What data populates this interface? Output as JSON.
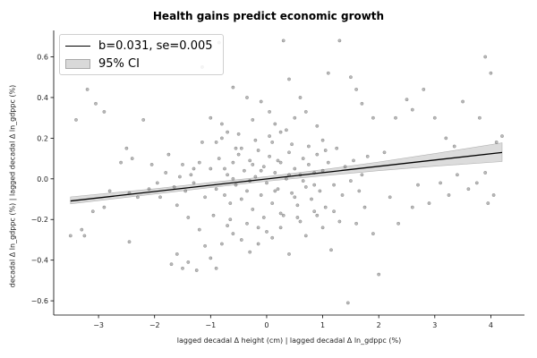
{
  "chart_data": {
    "type": "scatter",
    "title": "Health gains predict economic growth",
    "xlabel": "lagged decadal Δ height (cm) | lagged decadal Δ ln_gdppc (%)",
    "ylabel": "decadal Δ ln_gdppc (%) | lagged decadal Δ ln_gdppc (%)",
    "xlim": [
      -3.8,
      4.6
    ],
    "ylim": [
      -0.67,
      0.73
    ],
    "x_ticks": [
      -3,
      -2,
      -1,
      0,
      1,
      2,
      3,
      4
    ],
    "x_tick_labels": [
      "−3",
      "−2",
      "−1",
      "0",
      "1",
      "2",
      "3",
      "4"
    ],
    "y_ticks": [
      -0.6,
      -0.4,
      -0.2,
      0.0,
      0.2,
      0.4,
      0.6
    ],
    "y_tick_labels": [
      "−0.6",
      "−0.4",
      "−0.2",
      "0.0",
      "0.2",
      "0.4",
      "0.6"
    ],
    "grid": false,
    "legend_position": "top-left",
    "series": [
      {
        "name": "b=0.031, se=0.005",
        "kind": "fit",
        "slope": 0.031,
        "intercept": -0.0005,
        "x_range": [
          -3.5,
          4.2
        ]
      },
      {
        "name": "95% CI",
        "kind": "ci",
        "x": [
          -3.5,
          -2.0,
          -1.0,
          0.0,
          1.0,
          2.0,
          3.0,
          4.2
        ],
        "lower": [
          -0.123,
          -0.075,
          -0.043,
          -0.012,
          0.015,
          0.04,
          0.062,
          0.085
        ],
        "upper": [
          -0.089,
          -0.049,
          -0.018,
          0.011,
          0.045,
          0.083,
          0.124,
          0.177
        ]
      },
      {
        "name": "observations",
        "kind": "scatter",
        "points": [
          [
            -3.4,
            0.29
          ],
          [
            -3.3,
            -0.25
          ],
          [
            -3.2,
            0.44
          ],
          [
            -3.05,
            0.37
          ],
          [
            -2.9,
            0.33
          ],
          [
            -2.6,
            0.08
          ],
          [
            -2.5,
            0.15
          ],
          [
            -2.4,
            0.1
          ],
          [
            -2.2,
            0.29
          ],
          [
            -2.05,
            0.07
          ],
          [
            -2.45,
            -0.31
          ],
          [
            -3.5,
            -0.28
          ],
          [
            -3.25,
            -0.28
          ],
          [
            -3.1,
            -0.16
          ],
          [
            -2.9,
            -0.14
          ],
          [
            -2.8,
            -0.06
          ],
          [
            -2.45,
            -0.07
          ],
          [
            -2.3,
            -0.09
          ],
          [
            -1.75,
            0.12
          ],
          [
            -1.5,
            0.07
          ],
          [
            -1.3,
            0.05
          ],
          [
            -1.15,
            0.18
          ],
          [
            -1.0,
            0.3
          ],
          [
            -0.9,
            0.18
          ],
          [
            -0.8,
            0.27
          ],
          [
            -0.7,
            0.23
          ],
          [
            -0.6,
            0.45
          ],
          [
            -0.55,
            0.15
          ],
          [
            -1.15,
            0.55
          ],
          [
            -0.85,
            0.67
          ],
          [
            -0.35,
            0.4
          ],
          [
            -0.25,
            0.29
          ],
          [
            -0.1,
            0.38
          ],
          [
            0.05,
            0.33
          ],
          [
            0.15,
            0.27
          ],
          [
            0.25,
            0.23
          ],
          [
            0.3,
            0.68
          ],
          [
            0.4,
            0.49
          ],
          [
            0.5,
            0.3
          ],
          [
            0.6,
            0.4
          ],
          [
            0.7,
            0.33
          ],
          [
            0.9,
            0.26
          ],
          [
            1.0,
            0.19
          ],
          [
            1.1,
            0.52
          ],
          [
            1.3,
            0.68
          ],
          [
            1.5,
            0.5
          ],
          [
            1.6,
            0.44
          ],
          [
            1.7,
            0.37
          ],
          [
            1.9,
            0.3
          ],
          [
            2.1,
            0.13
          ],
          [
            2.3,
            0.3
          ],
          [
            2.5,
            0.39
          ],
          [
            2.6,
            0.34
          ],
          [
            2.8,
            0.44
          ],
          [
            3.0,
            0.3
          ],
          [
            3.2,
            0.2
          ],
          [
            3.35,
            0.16
          ],
          [
            3.5,
            0.38
          ],
          [
            3.8,
            0.3
          ],
          [
            3.9,
            0.6
          ],
          [
            4.0,
            0.52
          ],
          [
            4.1,
            0.18
          ],
          [
            4.2,
            0.21
          ],
          [
            -1.9,
            -0.09
          ],
          [
            -1.6,
            -0.13
          ],
          [
            -1.4,
            -0.19
          ],
          [
            -1.2,
            -0.25
          ],
          [
            -1.1,
            -0.33
          ],
          [
            -1.0,
            -0.39
          ],
          [
            -0.9,
            -0.44
          ],
          [
            -0.8,
            -0.32
          ],
          [
            -0.7,
            -0.23
          ],
          [
            -0.6,
            -0.27
          ],
          [
            -1.6,
            -0.37
          ],
          [
            -1.4,
            -0.41
          ],
          [
            -1.25,
            -0.45
          ],
          [
            -1.5,
            -0.44
          ],
          [
            -1.7,
            -0.42
          ],
          [
            -0.45,
            -0.3
          ],
          [
            -0.3,
            -0.36
          ],
          [
            -0.15,
            -0.32
          ],
          [
            0.0,
            -0.26
          ],
          [
            0.1,
            -0.29
          ],
          [
            0.25,
            -0.24
          ],
          [
            0.4,
            -0.37
          ],
          [
            0.55,
            -0.19
          ],
          [
            0.7,
            -0.28
          ],
          [
            0.85,
            -0.16
          ],
          [
            1.0,
            -0.24
          ],
          [
            1.15,
            -0.35
          ],
          [
            1.3,
            -0.21
          ],
          [
            1.45,
            -0.61
          ],
          [
            1.6,
            -0.22
          ],
          [
            1.75,
            -0.14
          ],
          [
            1.9,
            -0.27
          ],
          [
            2.0,
            -0.47
          ],
          [
            2.2,
            -0.09
          ],
          [
            2.35,
            -0.22
          ],
          [
            2.6,
            -0.14
          ],
          [
            2.7,
            -0.03
          ],
          [
            2.9,
            -0.12
          ],
          [
            3.1,
            -0.02
          ],
          [
            3.25,
            -0.08
          ],
          [
            3.4,
            0.02
          ],
          [
            3.6,
            -0.05
          ],
          [
            3.75,
            -0.02
          ],
          [
            3.9,
            0.03
          ],
          [
            3.95,
            -0.12
          ],
          [
            4.05,
            -0.08
          ],
          [
            -1.0,
            0.05
          ],
          [
            -0.9,
            -0.05
          ],
          [
            -0.85,
            0.1
          ],
          [
            -0.75,
            -0.08
          ],
          [
            -0.7,
            0.02
          ],
          [
            -0.65,
            -0.12
          ],
          [
            -0.6,
            0.08
          ],
          [
            -0.55,
            -0.03
          ],
          [
            -0.5,
            0.12
          ],
          [
            -0.45,
            -0.1
          ],
          [
            -0.4,
            0.04
          ],
          [
            -0.35,
            -0.06
          ],
          [
            -0.3,
            0.09
          ],
          [
            -0.25,
            -0.15
          ],
          [
            -0.2,
            0.01
          ],
          [
            -0.15,
            0.14
          ],
          [
            -0.1,
            -0.08
          ],
          [
            -0.05,
            0.06
          ],
          [
            0.0,
            -0.02
          ],
          [
            0.05,
            0.11
          ],
          [
            0.1,
            -0.12
          ],
          [
            0.15,
            0.03
          ],
          [
            0.2,
            -0.05
          ],
          [
            0.25,
            0.08
          ],
          [
            0.3,
            -0.18
          ],
          [
            0.35,
            0.0
          ],
          [
            0.4,
            0.13
          ],
          [
            0.45,
            -0.07
          ],
          [
            0.5,
            0.05
          ],
          [
            0.55,
            -0.13
          ],
          [
            0.6,
            0.02
          ],
          [
            0.65,
            0.1
          ],
          [
            0.7,
            -0.04
          ],
          [
            0.75,
            0.07
          ],
          [
            0.8,
            -0.1
          ],
          [
            0.85,
            0.03
          ],
          [
            0.9,
            0.12
          ],
          [
            0.95,
            -0.06
          ],
          [
            1.0,
            0.04
          ],
          [
            1.05,
            -0.14
          ],
          [
            1.1,
            0.08
          ],
          [
            1.2,
            -0.03
          ],
          [
            1.25,
            0.15
          ],
          [
            1.35,
            -0.08
          ],
          [
            1.4,
            0.06
          ],
          [
            1.5,
            -0.01
          ],
          [
            1.55,
            0.09
          ],
          [
            1.65,
            -0.06
          ],
          [
            1.7,
            0.02
          ],
          [
            1.8,
            0.11
          ],
          [
            -1.3,
            -0.02
          ],
          [
            -1.2,
            0.08
          ],
          [
            -1.1,
            -0.09
          ],
          [
            -1.35,
            0.02
          ],
          [
            -1.45,
            -0.06
          ],
          [
            -1.55,
            0.01
          ],
          [
            -1.65,
            -0.04
          ],
          [
            -1.8,
            0.03
          ],
          [
            -1.95,
            -0.02
          ],
          [
            -2.1,
            -0.05
          ],
          [
            -0.95,
            -0.18
          ],
          [
            -0.8,
            0.2
          ],
          [
            -0.65,
            -0.2
          ],
          [
            -0.5,
            0.22
          ],
          [
            -0.35,
            -0.22
          ],
          [
            -0.2,
            0.19
          ],
          [
            -0.05,
            -0.19
          ],
          [
            0.1,
            0.18
          ],
          [
            0.25,
            -0.17
          ],
          [
            0.45,
            0.17
          ],
          [
            0.6,
            -0.21
          ],
          [
            0.75,
            0.16
          ],
          [
            0.9,
            -0.18
          ],
          [
            1.05,
            0.14
          ],
          [
            1.2,
            -0.16
          ],
          [
            -0.25,
            0.07
          ],
          [
            0.05,
            0.21
          ],
          [
            0.35,
            0.24
          ],
          [
            -0.15,
            -0.24
          ],
          [
            0.5,
            -0.09
          ],
          [
            -0.6,
            0.0
          ],
          [
            -0.3,
            -0.01
          ],
          [
            0.15,
            -0.06
          ],
          [
            0.4,
            0.02
          ],
          [
            0.65,
            -0.01
          ],
          [
            0.85,
            -0.03
          ],
          [
            -0.45,
            0.15
          ],
          [
            -0.1,
            0.04
          ],
          [
            0.2,
            0.09
          ],
          [
            -0.75,
            0.05
          ]
        ]
      }
    ]
  },
  "colors": {
    "fit_line": "#000000",
    "ci_fill": "#d9d9d9",
    "ci_edge": "#a9a9a9",
    "points": "#7f7f7f",
    "axis": "#000000"
  }
}
